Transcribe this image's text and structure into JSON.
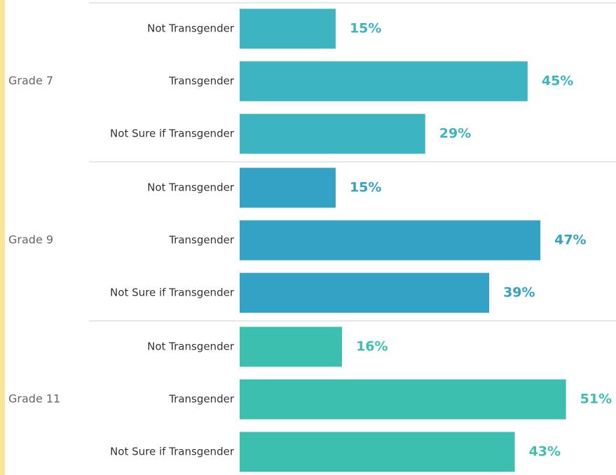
{
  "chart_data": {
    "type": "bar",
    "categories": [
      "Not Transgender",
      "Transgender",
      "Not Sure if Transgender"
    ],
    "series": [
      {
        "name": "Grade 7",
        "color": "#3db4c2",
        "values": [
          15,
          45,
          29
        ],
        "value_labels": [
          "15%",
          "45%",
          "29%"
        ]
      },
      {
        "name": "Grade 9",
        "color": "#34a2c5",
        "values": [
          15,
          47,
          39
        ],
        "value_labels": [
          "15%",
          "47%",
          "39%"
        ]
      },
      {
        "name": "Grade 11",
        "color": "#3cbfae",
        "values": [
          16,
          51,
          43
        ],
        "value_labels": [
          "16%",
          "51%",
          "43%"
        ]
      }
    ]
  }
}
